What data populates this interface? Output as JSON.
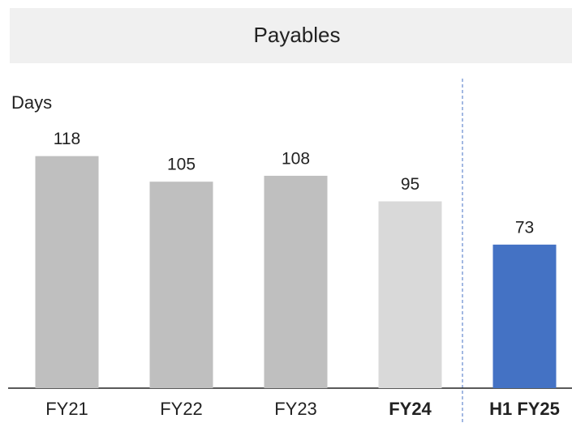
{
  "chart_data": {
    "type": "bar",
    "title": "Payables",
    "y_label": "Days",
    "categories": [
      "FY21",
      "FY22",
      "FY23",
      "FY24",
      "H1 FY25"
    ],
    "values": [
      118,
      105,
      108,
      95,
      73
    ],
    "colors": [
      "#bfbfbf",
      "#bfbfbf",
      "#bfbfbf",
      "#d9d9d9",
      "#4472c4"
    ],
    "bold": [
      false,
      false,
      false,
      true,
      true
    ],
    "ylim": [
      0,
      150
    ]
  }
}
